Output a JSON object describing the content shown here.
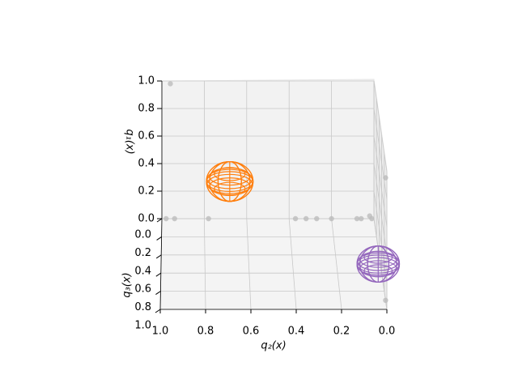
{
  "chart_data": {
    "type": "scatter3d",
    "xlabel": "q₂(x)",
    "ylabel": "q₃(x)",
    "zlabel": "q₁(x)",
    "xlim": [
      0,
      1
    ],
    "ylim": [
      0,
      1
    ],
    "zlim": [
      0,
      1
    ],
    "xticks": [
      {
        "value": 0,
        "label": "0.0"
      },
      {
        "value": 0.2,
        "label": "0.2"
      },
      {
        "value": 0.4,
        "label": "0.4"
      },
      {
        "value": 0.6,
        "label": "0.6"
      },
      {
        "value": 0.8,
        "label": "0.8"
      },
      {
        "value": 1,
        "label": "1.0"
      }
    ],
    "yticks": [
      {
        "value": 0,
        "label": "0.0"
      },
      {
        "value": 0.2,
        "label": "0.2"
      },
      {
        "value": 0.4,
        "label": "0.4"
      },
      {
        "value": 0.6,
        "label": "0.6"
      },
      {
        "value": 0.8,
        "label": "0.8"
      },
      {
        "value": 1,
        "label": "1.0"
      }
    ],
    "zticks": [
      {
        "value": 0,
        "label": "0.0"
      },
      {
        "value": 0.2,
        "label": "0.2"
      },
      {
        "value": 0.4,
        "label": "0.4"
      },
      {
        "value": 0.6,
        "label": "0.6"
      },
      {
        "value": 0.8,
        "label": "0.8"
      },
      {
        "value": 1,
        "label": "1.0"
      }
    ],
    "grid": true,
    "series": [
      {
        "color": "#bbbbbb",
        "x": [
          0.96,
          0.98,
          0.94,
          0.78,
          0.37,
          0.32,
          0.27,
          0.2,
          0.08,
          0.06,
          0.02,
          0.01,
          0,
          0
        ],
        "y": [
          0,
          0,
          0,
          0,
          0,
          0,
          0,
          0,
          0,
          0,
          0,
          0,
          0.9,
          0.9
        ],
        "z": [
          0.98,
          0,
          0,
          0,
          0,
          0,
          0,
          0,
          0,
          0,
          0.02,
          0,
          0.89,
          0
        ]
      },
      {
        "color": "#ff7f0e",
        "x": [
          0.68
        ],
        "y": [
          0
        ],
        "z": [
          0.27
        ],
        "size": [
          0.11
        ]
      },
      {
        "color": "#9467bd",
        "x": [
          0.01
        ],
        "y": [
          0.5
        ],
        "z": [
          0
        ],
        "size": [
          0.1
        ]
      }
    ]
  }
}
